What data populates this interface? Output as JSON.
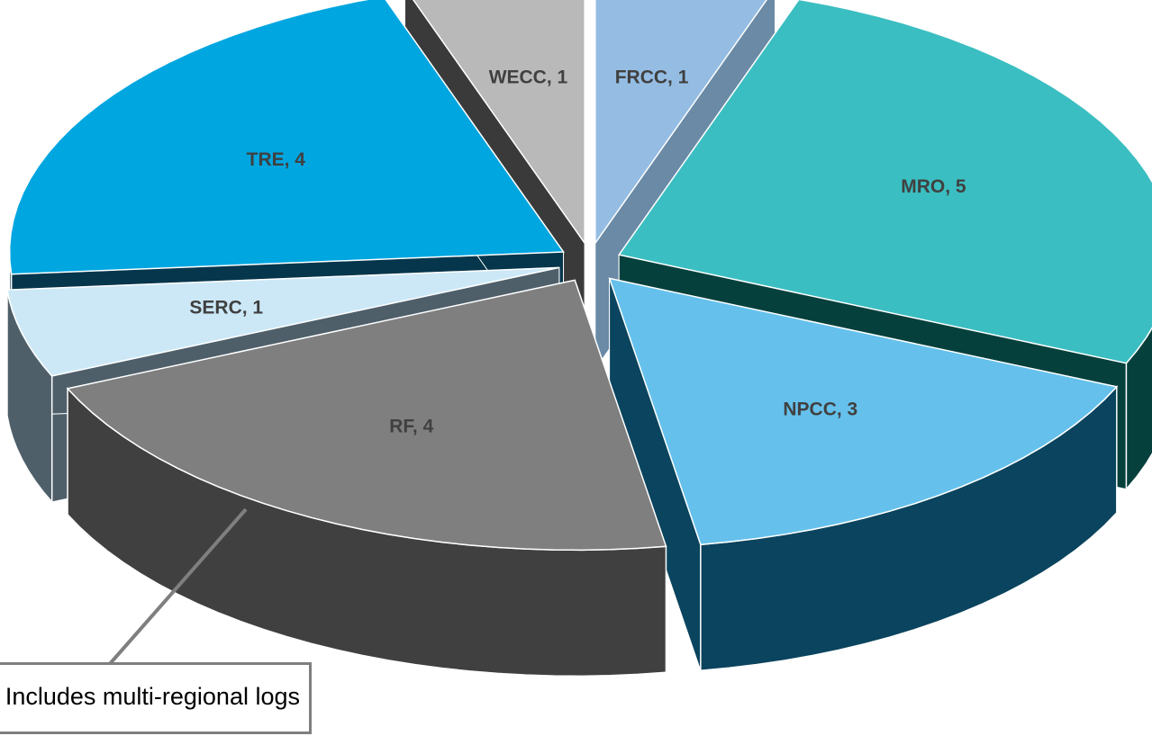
{
  "chart_data": {
    "type": "pie",
    "title": "",
    "three_d": true,
    "exploded": true,
    "slices": [
      {
        "label": "FRCC",
        "value": 1,
        "data_label": "FRCC, 1",
        "color": "#95BDE3",
        "side_color": "#6A8AA6",
        "label_color": "#404040"
      },
      {
        "label": "MRO",
        "value": 5,
        "data_label": "MRO, 5",
        "color": "#3BBEC1",
        "side_color": "#05403D",
        "label_color": "#404040"
      },
      {
        "label": "NPCC",
        "value": 3,
        "data_label": "NPCC, 3",
        "color": "#65C1EC",
        "side_color": "#0A445E",
        "label_color": "#404040"
      },
      {
        "label": "RF",
        "value": 4,
        "data_label": "RF, 4",
        "color": "#7F7F7F",
        "side_color": "#404040",
        "label_color": "#404040"
      },
      {
        "label": "SERC",
        "value": 1,
        "data_label": "SERC, 1",
        "color": "#CCE8F7",
        "side_color": "#4E5F6A",
        "label_color": "#404040"
      },
      {
        "label": "TRE",
        "value": 4,
        "data_label": "TRE, 4",
        "color": "#00A6E0",
        "side_color": "#06364C",
        "label_color": "#404040"
      },
      {
        "label": "WECC",
        "value": 1,
        "data_label": "WECC, 1",
        "color": "#B9B9B9",
        "side_color": "#3A3A3A",
        "label_color": "#404040"
      }
    ],
    "annotation": {
      "text": "Includes multi-regional logs",
      "points_to": "RF"
    }
  }
}
